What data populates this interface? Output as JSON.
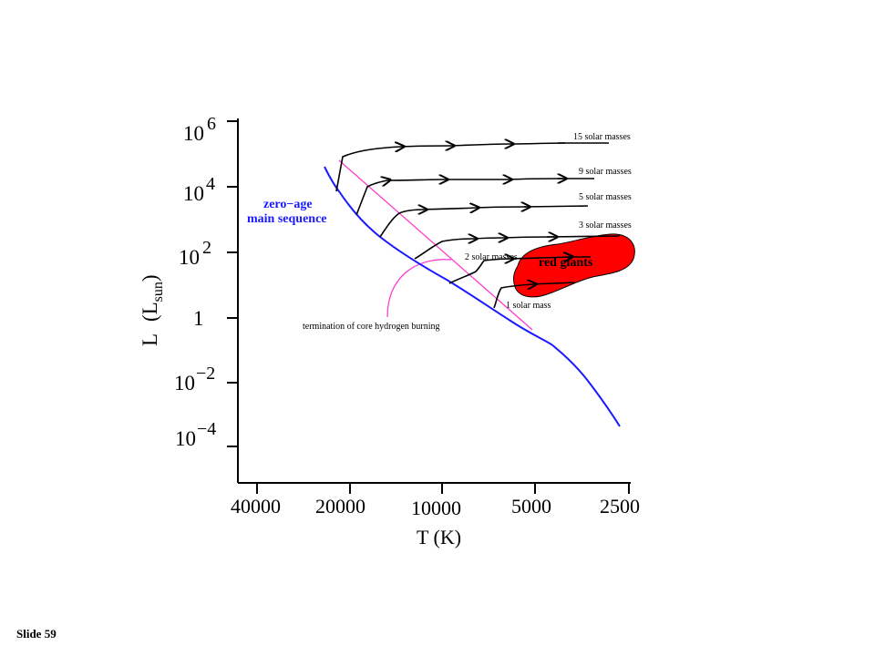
{
  "slide_number": "Slide 59",
  "y_axis": {
    "label_main": "L",
    "label_paren_open": "(",
    "label_L": "L",
    "label_sub": "sun",
    "label_paren_close": ")",
    "ticks": [
      {
        "base": "10",
        "exp": "6"
      },
      {
        "base": "10",
        "exp": "4"
      },
      {
        "base": "10",
        "exp": "2"
      },
      {
        "base": "1",
        "exp": ""
      },
      {
        "base": "10",
        "exp": "−2"
      },
      {
        "base": "10",
        "exp": "−4"
      }
    ]
  },
  "x_axis": {
    "label": "T (K)",
    "ticks": [
      "40000",
      "20000",
      "10000",
      "5000",
      "2500"
    ]
  },
  "labels": {
    "zams_line1": "zero−age",
    "zams_line2": "main sequence",
    "termination": "termination of core hydrogen burning",
    "red_giants": "red giants"
  },
  "tracks": [
    {
      "label": "15 solar masses"
    },
    {
      "label": "9 solar masses"
    },
    {
      "label": "5 solar masses"
    },
    {
      "label": "3 solar masses"
    },
    {
      "label": "2 solar masses"
    },
    {
      "label": "1 solar mass"
    }
  ],
  "colors": {
    "zams": "#1a1aff",
    "termination_line": "#ff33cc",
    "red_giants": "#ff0000",
    "tracks": "#000000"
  }
}
